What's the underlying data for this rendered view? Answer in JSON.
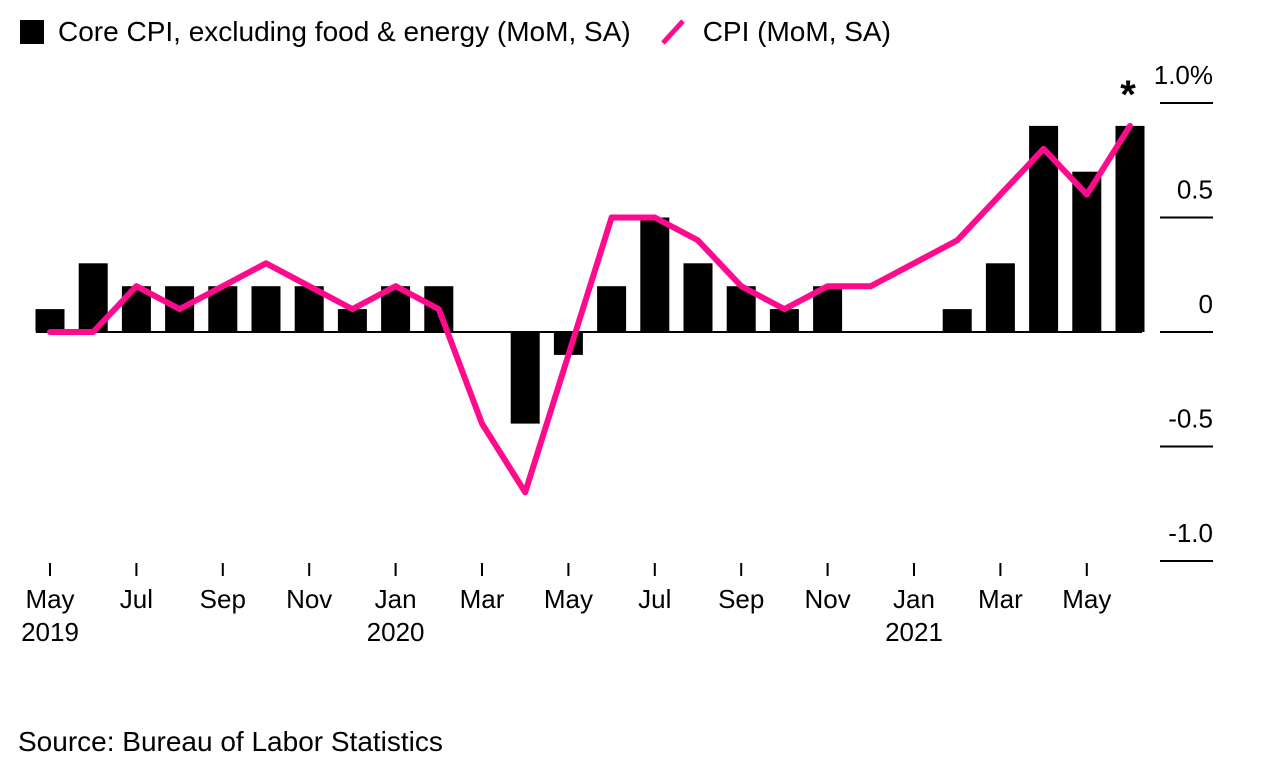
{
  "chart_data": {
    "type": "bar",
    "legend": {
      "core_label": "Core CPI, excluding food & energy (MoM, SA)",
      "cpi_label": "CPI (MoM, SA)"
    },
    "categories": [
      "May 2019",
      "Jun 2019",
      "Jul 2019",
      "Aug 2019",
      "Sep 2019",
      "Oct 2019",
      "Nov 2019",
      "Dec 2019",
      "Jan 2020",
      "Feb 2020",
      "Mar 2020",
      "Apr 2020",
      "May 2020",
      "Jun 2020",
      "Jul 2020",
      "Aug 2020",
      "Sep 2020",
      "Oct 2020",
      "Nov 2020",
      "Dec 2020",
      "Jan 2021",
      "Feb 2021",
      "Mar 2021",
      "Apr 2021",
      "May 2021",
      "Jun 2021"
    ],
    "series": [
      {
        "name": "Core CPI, excluding food & energy (MoM, SA)",
        "kind": "bar",
        "color": "#000000",
        "values": [
          0.1,
          0.3,
          0.2,
          0.2,
          0.2,
          0.2,
          0.2,
          0.1,
          0.2,
          0.2,
          0.0,
          -0.4,
          -0.1,
          0.2,
          0.5,
          0.3,
          0.2,
          0.1,
          0.2,
          0.0,
          0.0,
          0.1,
          0.3,
          0.9,
          0.7,
          0.9
        ]
      },
      {
        "name": "CPI (MoM, SA)",
        "kind": "line",
        "color": "#ff0a8c",
        "values": [
          0.0,
          0.0,
          0.2,
          0.1,
          0.2,
          0.3,
          0.2,
          0.1,
          0.2,
          0.1,
          -0.4,
          -0.7,
          -0.1,
          0.5,
          0.5,
          0.4,
          0.2,
          0.1,
          0.2,
          0.2,
          0.3,
          0.4,
          0.6,
          0.8,
          0.6,
          0.9
        ]
      }
    ],
    "ylim": [
      -1.0,
      1.0
    ],
    "y_ticks": [
      {
        "value": 1.0,
        "label": "1.0%"
      },
      {
        "value": 0.5,
        "label": "0.5"
      },
      {
        "value": 0,
        "label": "0"
      },
      {
        "value": -0.5,
        "label": "-0.5"
      },
      {
        "value": -1.0,
        "label": "-1.0"
      }
    ],
    "x_ticks": [
      {
        "index": 0,
        "label": "May",
        "year": "2019"
      },
      {
        "index": 2,
        "label": "Jul"
      },
      {
        "index": 4,
        "label": "Sep"
      },
      {
        "index": 6,
        "label": "Nov"
      },
      {
        "index": 8,
        "label": "Jan",
        "year": "2020"
      },
      {
        "index": 10,
        "label": "Mar"
      },
      {
        "index": 12,
        "label": "May"
      },
      {
        "index": 14,
        "label": "Jul"
      },
      {
        "index": 16,
        "label": "Sep"
      },
      {
        "index": 18,
        "label": "Nov"
      },
      {
        "index": 20,
        "label": "Jan",
        "year": "2021"
      },
      {
        "index": 22,
        "label": "Mar"
      },
      {
        "index": 24,
        "label": "May"
      }
    ],
    "annotation": {
      "index": 25,
      "text": "*"
    },
    "xlabel": "",
    "ylabel": ""
  },
  "source": "Source: Bureau of Labor Statistics"
}
